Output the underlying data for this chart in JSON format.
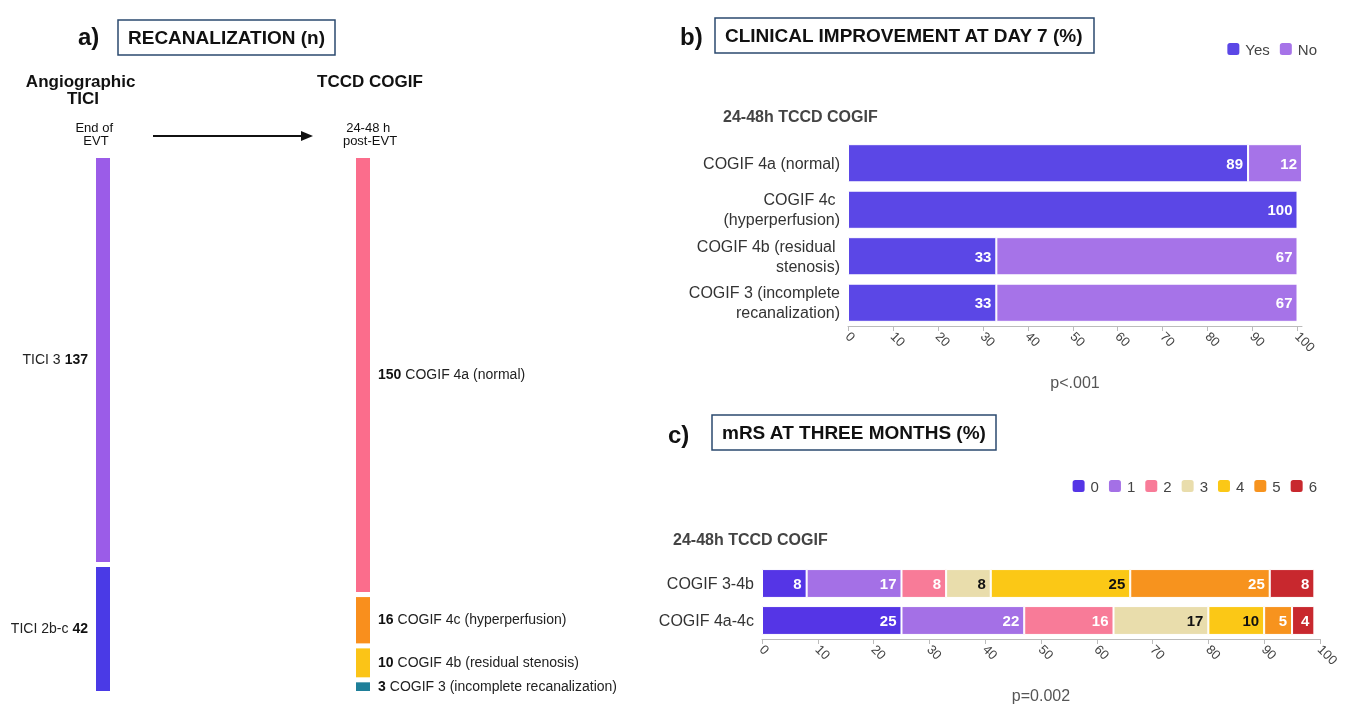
{
  "chart_data": [
    {
      "type": "other",
      "title": "RECANALIZATION (n)",
      "annotations": [
        "a)",
        "Angiographic TICI",
        "End of EVT",
        "TCCD COGIF",
        "24-48 h post-EVT"
      ],
      "categories": [
        "TICI 3",
        "TICI 2b-c",
        "COGIF 4a (normal)",
        "COGIF 4c (hyperperfusion)",
        "COGIF 4b (residual stenosis)",
        "COGIF 3 (incomplete recanalization)"
      ],
      "values": [
        137,
        42,
        150,
        16,
        10,
        3
      ],
      "colors": [
        "#9b5ce8",
        "#4a3ae6",
        "#fb6d8c",
        "#f98f1d",
        "#fbc417",
        "#1f7f99"
      ],
      "data_labels": true
    },
    {
      "type": "bar",
      "orientation": "horizontal",
      "stacked": true,
      "title": "CLINICAL IMPROVEMENT AT DAY 7 (%)",
      "subtitle": "24-48h TCCD COGIF",
      "xlabel": "p<.001",
      "annotations": [
        "b)"
      ],
      "categories": [
        "COGIF 4a (normal)",
        "COGIF 4c (hyperperfusion)",
        "COGIF 4b (residual stenosis)",
        "COGIF 3 (incomplete recanalization)"
      ],
      "series": [
        {
          "name": "Yes",
          "color": "#5b47e6",
          "values": [
            89,
            100,
            33,
            33
          ]
        },
        {
          "name": "No",
          "color": "#a673e8",
          "values": [
            12,
            null,
            67,
            67
          ]
        }
      ],
      "xlim": [
        0,
        101
      ],
      "xticks": [
        0,
        10,
        20,
        30,
        40,
        50,
        60,
        70,
        80,
        90,
        100
      ],
      "grid": false,
      "legend": "top right",
      "data_labels": true
    },
    {
      "type": "bar",
      "orientation": "horizontal",
      "stacked": true,
      "title": "mRS AT THREE MONTHS (%)",
      "subtitle": "24-48h TCCD COGIF",
      "xlabel": "p=0.002",
      "annotations": [
        "c)"
      ],
      "categories": [
        "COGIF 3-4b",
        "COGIF 4a-4c"
      ],
      "series": [
        {
          "name": "0",
          "color": "#5535e6",
          "values": [
            8,
            25
          ]
        },
        {
          "name": "1",
          "color": "#a470e6",
          "values": [
            17,
            22
          ]
        },
        {
          "name": "2",
          "color": "#f87b98",
          "values": [
            8,
            16
          ]
        },
        {
          "name": "3",
          "color": "#e9ddac",
          "values": [
            8,
            17
          ]
        },
        {
          "name": "4",
          "color": "#fbc816",
          "values": [
            25,
            10
          ]
        },
        {
          "name": "5",
          "color": "#f7931e",
          "values": [
            25,
            5
          ]
        },
        {
          "name": "6",
          "color": "#c8282e",
          "values": [
            8,
            4
          ]
        }
      ],
      "xlim": [
        0,
        100
      ],
      "xticks": [
        0,
        10,
        20,
        30,
        40,
        50,
        60,
        70,
        80,
        90,
        100
      ],
      "grid": false,
      "legend": "top right",
      "data_labels": true
    }
  ]
}
